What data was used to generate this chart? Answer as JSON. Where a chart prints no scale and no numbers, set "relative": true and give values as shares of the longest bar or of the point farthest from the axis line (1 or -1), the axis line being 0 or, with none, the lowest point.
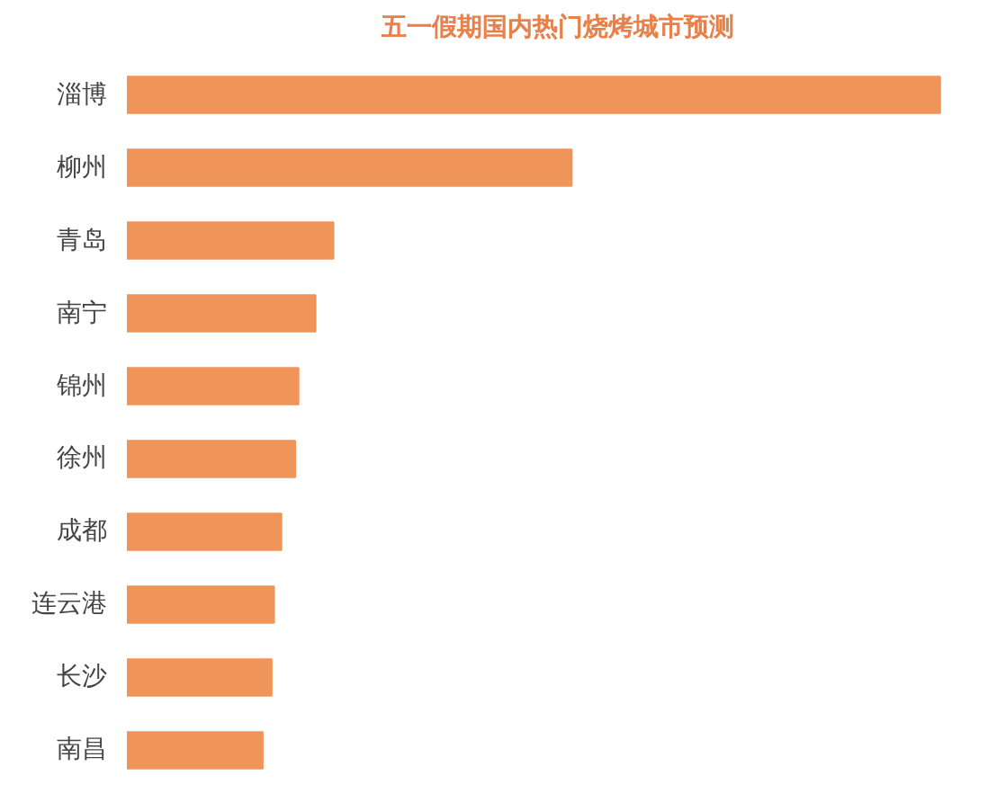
{
  "chart_data": {
    "type": "bar",
    "orientation": "horizontal",
    "relative": true,
    "title": "五一假期国内热门烧烤城市预测",
    "categories": [
      "淄博",
      "柳州",
      "青岛",
      "南宁",
      "锦州",
      "徐州",
      "成都",
      "连云港",
      "长沙",
      "南昌"
    ],
    "values": [
      1,
      0.547,
      0.254,
      0.232,
      0.211,
      0.207,
      0.19,
      0.181,
      0.178,
      0.167
    ],
    "color": "#f0955a",
    "grid": false
  }
}
